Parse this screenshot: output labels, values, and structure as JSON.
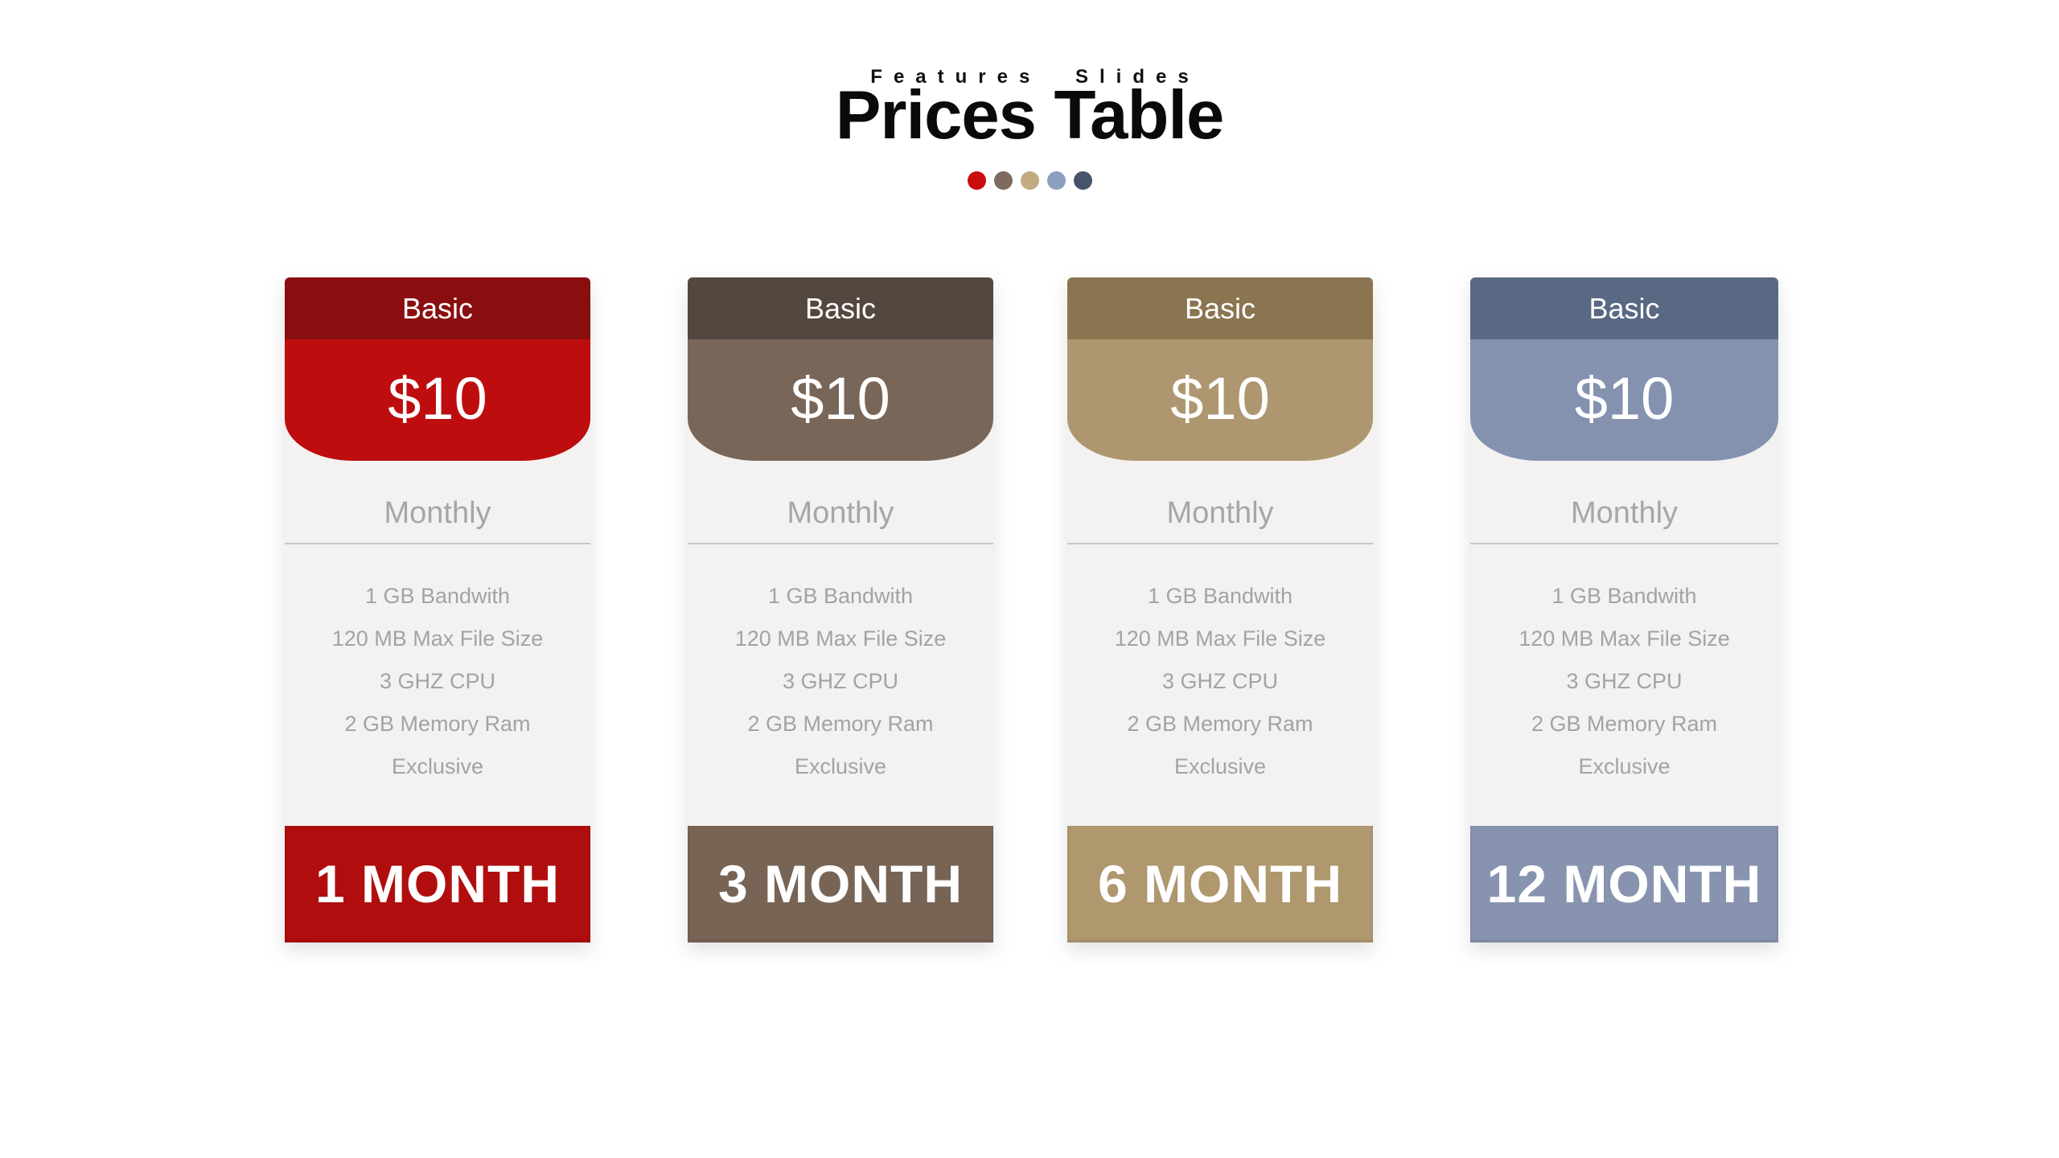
{
  "header": {
    "subtitle": "Features Slides",
    "title": "Prices Table",
    "dots": [
      "#c90d0d",
      "#7d6b60",
      "#c2ab81",
      "#8ba0c0",
      "#47536a"
    ]
  },
  "features": [
    "1 GB Bandwith",
    "120 MB Max File Size",
    "3 GHZ CPU",
    "2 GB Memory Ram",
    "Exclusive"
  ],
  "plans": [
    {
      "name": "Basic",
      "price": "$10",
      "period": "Monthly",
      "duration": "1 MONTH",
      "colors": {
        "dark": "#8a0e10",
        "main": "#be0d0e",
        "footer": "#b00e0e"
      }
    },
    {
      "name": "Basic",
      "price": "$10",
      "period": "Monthly",
      "duration": "3 MONTH",
      "colors": {
        "dark": "#544740",
        "main": "#786659",
        "footer": "#776455"
      }
    },
    {
      "name": "Basic",
      "price": "$10",
      "period": "Monthly",
      "duration": "6 MONTH",
      "colors": {
        "dark": "#8a7550",
        "main": "#ae9770",
        "footer": "#af976e"
      }
    },
    {
      "name": "Basic",
      "price": "$10",
      "period": "Monthly",
      "duration": "12 MONTH",
      "colors": {
        "dark": "#596883",
        "main": "#8492af",
        "footer": "#8793af"
      }
    }
  ]
}
